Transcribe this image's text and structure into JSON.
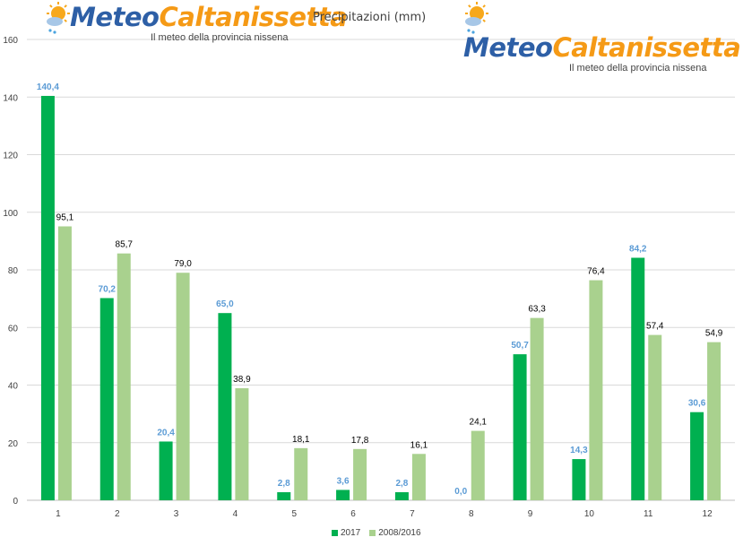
{
  "header": {
    "logo_left": {
      "meteo": "Meteo",
      "city": "Caltanissetta",
      "subtitle": "Il meteo della provincia nissena"
    },
    "logo_right": {
      "meteo": "Meteo",
      "city": "Caltanissetta",
      "subtitle": "Il meteo della provincia nissena"
    }
  },
  "colors": {
    "series_2017": "#00b050",
    "series_avg": "#a9d18e",
    "label_2017": "#5b9bd5",
    "label_avg": "#000000",
    "grid": "#d9d9d9",
    "sun": "#f7a81b",
    "drop": "#4aa3df"
  },
  "chart_data": {
    "type": "bar",
    "title": "Precipitazioni (mm)",
    "categories": [
      "1",
      "2",
      "3",
      "4",
      "5",
      "6",
      "7",
      "8",
      "9",
      "10",
      "11",
      "12"
    ],
    "series": [
      {
        "name": "2017",
        "values": [
          140.4,
          70.2,
          20.4,
          65.0,
          2.8,
          3.6,
          2.8,
          0.0,
          50.7,
          14.3,
          84.2,
          30.6
        ],
        "labels": [
          "140,4",
          "70,2",
          "20,4",
          "65,0",
          "2,8",
          "3,6",
          "2,8",
          "0,0",
          "50,7",
          "14,3",
          "84,2",
          "30,6"
        ]
      },
      {
        "name": "2008/2016",
        "values": [
          95.1,
          85.7,
          79.0,
          38.9,
          18.1,
          17.8,
          16.1,
          24.1,
          63.3,
          76.4,
          57.4,
          54.9
        ],
        "labels": [
          "95,1",
          "85,7",
          "79,0",
          "38,9",
          "18,1",
          "17,8",
          "16,1",
          "24,1",
          "63,3",
          "76,4",
          "57,4",
          "54,9"
        ]
      }
    ],
    "yticks": [
      "0",
      "20",
      "40",
      "60",
      "80",
      "100",
      "120",
      "140",
      "160"
    ],
    "ylim": [
      0,
      160
    ],
    "grid": true,
    "legend_position": "bottom"
  }
}
